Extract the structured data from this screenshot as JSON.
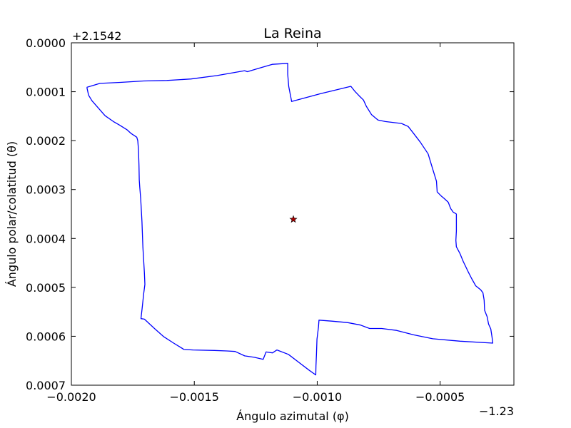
{
  "chart_data": {
    "type": "line",
    "title": "La Reina",
    "xlabel": "Ángulo azimutal (φ)",
    "ylabel": "Ángulo polar/colatitud (θ)",
    "x_offset_label": "−1.23",
    "y_offset_label": "+2.1542",
    "xlim": [
      -0.002,
      -0.0002
    ],
    "ylim": [
      0.0,
      0.0007
    ],
    "y_inverted": true,
    "grid": false,
    "x_ticks": [
      -0.002,
      -0.0015,
      -0.001,
      -0.0005
    ],
    "x_tick_labels": [
      "−0.0020",
      "−0.0015",
      "−0.0010",
      "−0.0005"
    ],
    "y_ticks": [
      0.0,
      0.0001,
      0.0002,
      0.0003,
      0.0004,
      0.0005,
      0.0006,
      0.0007
    ],
    "y_tick_labels": [
      "0.0000",
      "0.0001",
      "0.0002",
      "0.0003",
      "0.0004",
      "0.0005",
      "0.0006",
      "0.0007"
    ],
    "series": [
      {
        "color": "#0000ff",
        "points": [
          [
            -0.001937,
            9.1e-05
          ],
          [
            -0.001884,
            8.3e-05
          ],
          [
            -0.001801,
            8.1e-05
          ],
          [
            -0.001706,
            7.8e-05
          ],
          [
            -0.001612,
            7.7e-05
          ],
          [
            -0.001513,
            7.4e-05
          ],
          [
            -0.001407,
            6.7e-05
          ],
          [
            -0.001295,
            5.7e-05
          ],
          [
            -0.001284,
            5.9e-05
          ],
          [
            -0.001238,
            5.2e-05
          ],
          [
            -0.001183,
            4.4e-05
          ],
          [
            -0.00112,
            4.2e-05
          ],
          [
            -0.00112,
            6.4e-05
          ],
          [
            -0.001116,
            8.9e-05
          ],
          [
            -0.001104,
            0.00012
          ],
          [
            -0.000986,
            0.000104
          ],
          [
            -0.000863,
            8.9e-05
          ],
          [
            -0.000847,
            9.9e-05
          ],
          [
            -0.00083,
            0.000108
          ],
          [
            -0.000812,
            0.000117
          ],
          [
            -0.0008,
            0.00013
          ],
          [
            -0.000779,
            0.000147
          ],
          [
            -0.000753,
            0.000158
          ],
          [
            -0.000723,
            0.000161
          ],
          [
            -0.000657,
            0.000165
          ],
          [
            -0.00063,
            0.000171
          ],
          [
            -0.00061,
            0.000184
          ],
          [
            -0.000581,
            0.000203
          ],
          [
            -0.000549,
            0.000227
          ],
          [
            -0.000531,
            0.000257
          ],
          [
            -0.000515,
            0.000283
          ],
          [
            -0.000512,
            0.000305
          ],
          [
            -0.000496,
            0.000313
          ],
          [
            -0.000484,
            0.000318
          ],
          [
            -0.000467,
            0.000326
          ],
          [
            -0.000457,
            0.000339
          ],
          [
            -0.000447,
            0.000346
          ],
          [
            -0.000434,
            0.00035
          ],
          [
            -0.000434,
            0.000368
          ],
          [
            -0.000434,
            0.000385
          ],
          [
            -0.000436,
            0.000404
          ],
          [
            -0.000434,
            0.000417
          ],
          [
            -0.00042,
            0.00043
          ],
          [
            -0.000406,
            0.000447
          ],
          [
            -0.000386,
            0.000468
          ],
          [
            -0.000372,
            0.000482
          ],
          [
            -0.000355,
            0.000497
          ],
          [
            -0.000335,
            0.000505
          ],
          [
            -0.000326,
            0.000511
          ],
          [
            -0.000321,
            0.000526
          ],
          [
            -0.000319,
            0.000547
          ],
          [
            -0.000309,
            0.00056
          ],
          [
            -0.000303,
            0.000575
          ],
          [
            -0.000294,
            0.000585
          ],
          [
            -0.000289,
            0.000601
          ],
          [
            -0.000286,
            0.000614
          ],
          [
            -0.000419,
            0.00061
          ],
          [
            -0.00053,
            0.000605
          ],
          [
            -0.000608,
            0.000597
          ],
          [
            -0.000677,
            0.000588
          ],
          [
            -0.000738,
            0.000584
          ],
          [
            -0.000787,
            0.000584
          ],
          [
            -0.000824,
            0.000577
          ],
          [
            -0.000877,
            0.000572
          ],
          [
            -0.000941,
            0.000569
          ],
          [
            -0.000993,
            0.000567
          ],
          [
            -0.000995,
            0.000581
          ],
          [
            -0.001001,
            0.000606
          ],
          [
            -0.001003,
            0.000636
          ],
          [
            -0.001005,
            0.00066
          ],
          [
            -0.001006,
            0.000679
          ],
          [
            -0.001034,
            0.000669
          ],
          [
            -0.001117,
            0.000637
          ],
          [
            -0.001164,
            0.000628
          ],
          [
            -0.001182,
            0.000634
          ],
          [
            -0.001208,
            0.000632
          ],
          [
            -0.00122,
            0.000647
          ],
          [
            -0.001256,
            0.000643
          ],
          [
            -0.001295,
            0.00064
          ],
          [
            -0.001334,
            0.000631
          ],
          [
            -0.001367,
            0.00063
          ],
          [
            -0.001418,
            0.000629
          ],
          [
            -0.001505,
            0.000628
          ],
          [
            -0.001542,
            0.000627
          ],
          [
            -0.001584,
            0.000614
          ],
          [
            -0.001624,
            0.000601
          ],
          [
            -0.00166,
            0.000585
          ],
          [
            -0.001703,
            0.000565
          ],
          [
            -0.001717,
            0.000564
          ],
          [
            -0.001712,
            0.000542
          ],
          [
            -0.001706,
            0.000513
          ],
          [
            -0.001701,
            0.000494
          ],
          [
            -0.001703,
            0.00047
          ],
          [
            -0.001709,
            0.000418
          ],
          [
            -0.001713,
            0.000366
          ],
          [
            -0.001718,
            0.000318
          ],
          [
            -0.001722,
            0.000295
          ],
          [
            -0.001724,
            0.00028
          ],
          [
            -0.001725,
            0.00025
          ],
          [
            -0.001727,
            0.000218
          ],
          [
            -0.00173,
            0.0002
          ],
          [
            -0.001734,
            0.000193
          ],
          [
            -0.001758,
            0.000185
          ],
          [
            -0.001773,
            0.000178
          ],
          [
            -0.001805,
            0.000168
          ],
          [
            -0.001829,
            0.000161
          ],
          [
            -0.001863,
            0.000149
          ],
          [
            -0.001889,
            0.000134
          ],
          [
            -0.001917,
            0.000118
          ],
          [
            -0.00193,
            0.000107
          ],
          [
            -0.001937,
            9.1e-05
          ]
        ]
      }
    ],
    "marker": {
      "x": -0.001097,
      "y": 0.000361,
      "shape": "star",
      "color": "#aa0000"
    }
  }
}
